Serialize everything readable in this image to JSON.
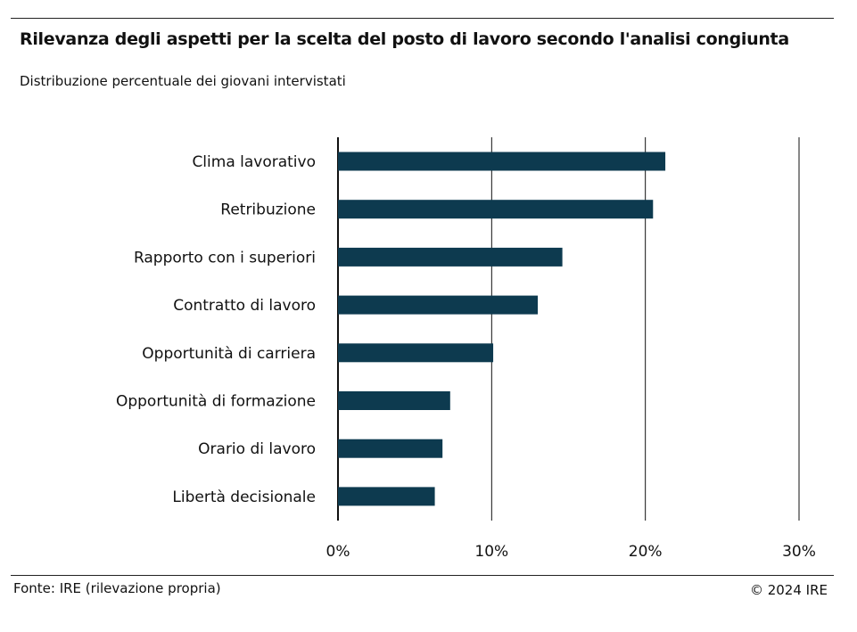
{
  "header": {
    "title": "Rilevanza degli aspetti per la scelta del posto di lavoro secondo l'analisi congiunta",
    "subtitle": "Distribuzione percentuale dei giovani intervistati"
  },
  "footer": {
    "source": "Fonte: IRE (rilevazione propria)",
    "copyright": "© 2024 IRE"
  },
  "chart_data": {
    "type": "bar",
    "orientation": "horizontal",
    "title": "Rilevanza degli aspetti per la scelta del posto di lavoro secondo l'analisi congiunta",
    "subtitle": "Distribuzione percentuale dei giovani intervistati",
    "categories": [
      "Clima lavorativo",
      "Retribuzione",
      "Rapporto con i superiori",
      "Contratto di lavoro",
      "Opportunità di carriera",
      "Opportunità di formazione",
      "Orario di lavoro",
      "Libertà decisionale"
    ],
    "values": [
      21.3,
      20.5,
      14.6,
      13.0,
      10.1,
      7.3,
      6.8,
      6.3
    ],
    "xlim": [
      0,
      30
    ],
    "xticks": [
      "0%",
      "10%",
      "20%",
      "30%"
    ],
    "grid": "vertical",
    "legend": "none",
    "colors": {
      "bar": "#0d3a4f",
      "grid": "#111111",
      "text": "#111111"
    }
  }
}
